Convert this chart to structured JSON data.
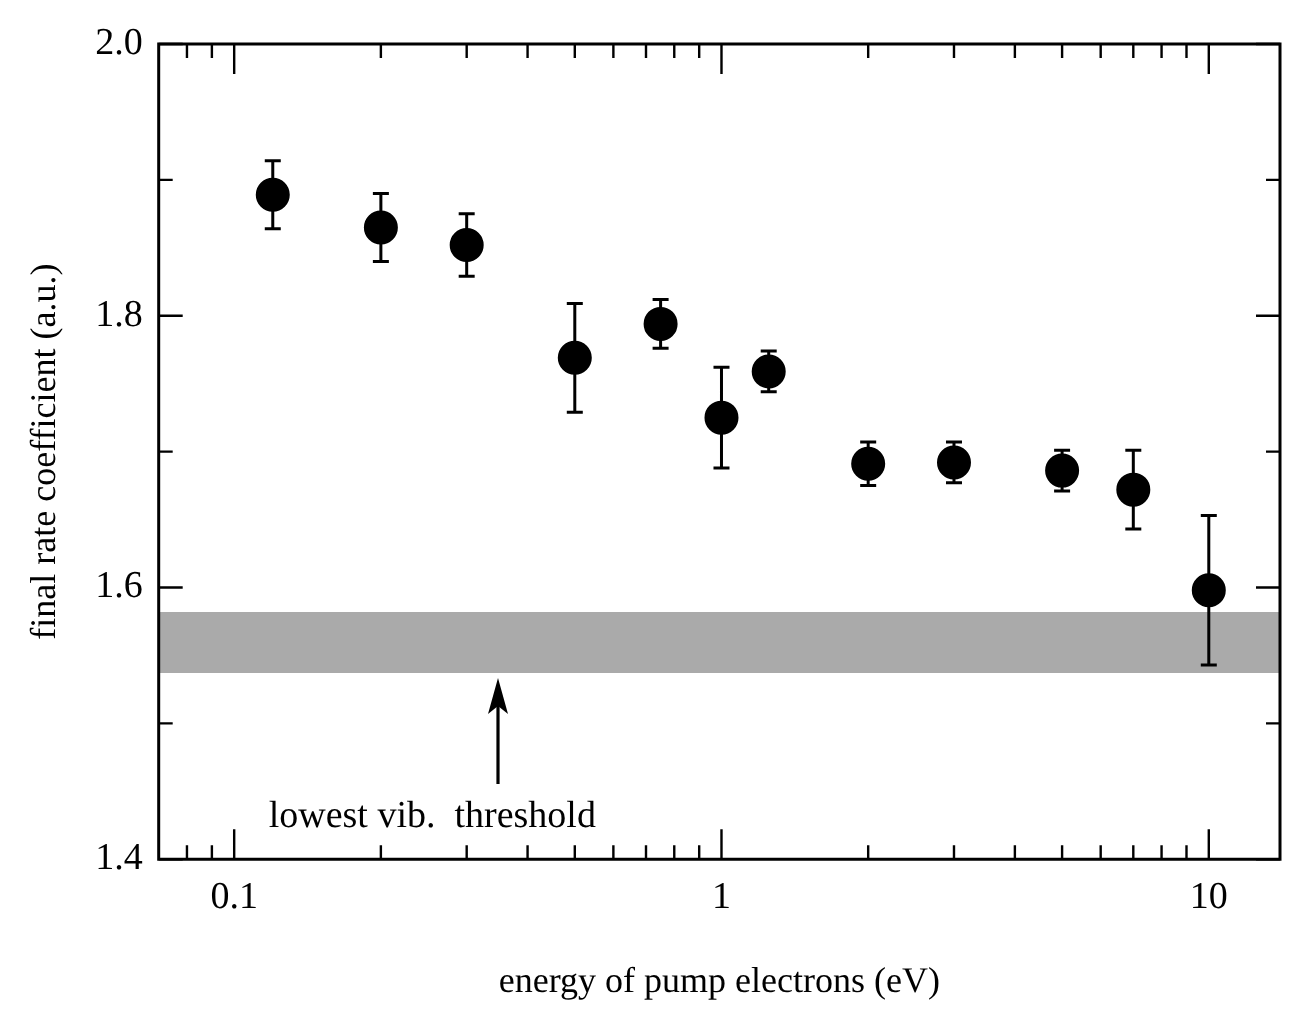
{
  "chart_data": {
    "type": "scatter",
    "xlabel": "energy of pump electrons (eV)",
    "ylabel": "final rate coefficient (a.u.)",
    "x": [
      0.12,
      0.2,
      0.3,
      0.5,
      0.75,
      1.0,
      1.25,
      2.0,
      3.0,
      5.0,
      7.0,
      10.0
    ],
    "series": [
      {
        "color": "#000000",
        "values": [
          1.889,
          1.865,
          1.852,
          1.769,
          1.794,
          1.725,
          1.759,
          1.691,
          1.692,
          1.686,
          1.672,
          1.598
        ],
        "errors": [
          0.025,
          0.025,
          0.023,
          0.04,
          0.018,
          0.037,
          0.015,
          0.016,
          0.015,
          0.015,
          0.029,
          0.055
        ]
      }
    ],
    "log": "x",
    "marker": "circle",
    "grid": false,
    "legend": false,
    "xlim": [
      0.07,
      14
    ],
    "ylim": [
      1.4,
      2.0
    ],
    "xticks": [
      {
        "value": 0.08,
        "label": null
      },
      {
        "value": 0.09,
        "label": null
      },
      {
        "value": 0.1,
        "label": "0.1"
      },
      {
        "value": 0.2,
        "label": null
      },
      {
        "value": 0.3,
        "label": null
      },
      {
        "value": 0.4,
        "label": null
      },
      {
        "value": 0.5,
        "label": null
      },
      {
        "value": 0.6,
        "label": null
      },
      {
        "value": 0.7,
        "label": null
      },
      {
        "value": 0.8,
        "label": null
      },
      {
        "value": 0.9,
        "label": null
      },
      1,
      {
        "value": 2,
        "label": null
      },
      {
        "value": 3,
        "label": null
      },
      {
        "value": 4,
        "label": null
      },
      {
        "value": 5,
        "label": null
      },
      {
        "value": 6,
        "label": null
      },
      {
        "value": 7,
        "label": null
      },
      {
        "value": 8,
        "label": null
      },
      {
        "value": 9,
        "label": null
      },
      10
    ],
    "yticks": [
      {
        "value": 1.4,
        "label": "1.4"
      },
      {
        "value": 1.5,
        "label": null
      },
      {
        "value": 1.6,
        "label": "1.6"
      },
      {
        "value": 1.7,
        "label": null
      },
      {
        "value": 1.8,
        "label": "1.8"
      },
      {
        "value": 1.9,
        "label": null
      },
      {
        "value": 2.0,
        "label": "2.0"
      }
    ],
    "bands": [
      {
        "axis": "y",
        "from": 1.537,
        "to": 1.582,
        "color": "#aaaaaa"
      }
    ],
    "annotations": [
      "lowest vib.  threshold"
    ]
  }
}
